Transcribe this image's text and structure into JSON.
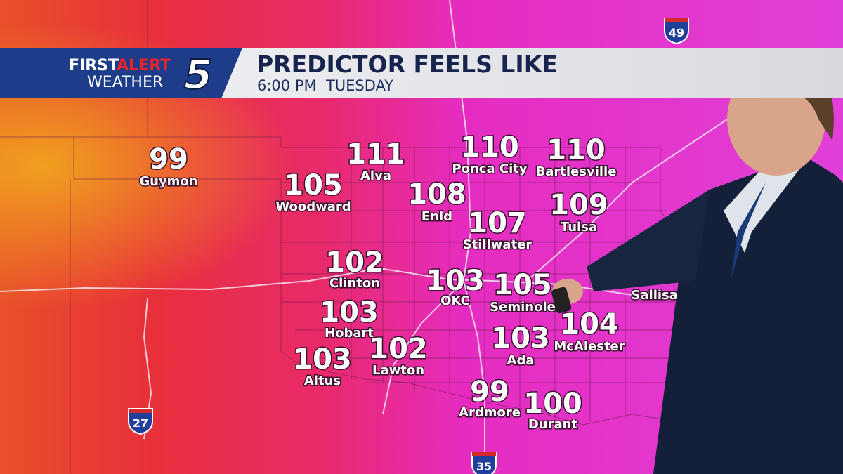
{
  "header": {
    "brand_first": "FIRST",
    "brand_alert": "ALERT",
    "brand_weather": "WEATHER",
    "channel": "5",
    "title": "PREDICTOR FEELS LIKE",
    "subtitle": "6:00 PM  TUESDAY"
  },
  "highways": [
    "49",
    "27",
    "35"
  ],
  "cities": [
    {
      "name": "Guymon",
      "value": 99
    },
    {
      "name": "Woodward",
      "value": 105
    },
    {
      "name": "Alva",
      "value": 111
    },
    {
      "name": "Ponca City",
      "value": 110
    },
    {
      "name": "Bartlesville",
      "value": 110
    },
    {
      "name": "Enid",
      "value": 108
    },
    {
      "name": "Tulsa",
      "value": 109
    },
    {
      "name": "Stillwater",
      "value": 107
    },
    {
      "name": "Clinton",
      "value": 102
    },
    {
      "name": "OKC",
      "value": 103
    },
    {
      "name": "Seminole",
      "value": 105
    },
    {
      "name": "Sallisaw"
    },
    {
      "name": "Hobart",
      "value": 103
    },
    {
      "name": "McAlester",
      "value": 104
    },
    {
      "name": "Ada",
      "value": 103
    },
    {
      "name": "Altus",
      "value": 103
    },
    {
      "name": "Lawton",
      "value": 102
    },
    {
      "name": "Ardmore",
      "value": 99
    },
    {
      "name": "Durant",
      "value": 100
    }
  ]
}
